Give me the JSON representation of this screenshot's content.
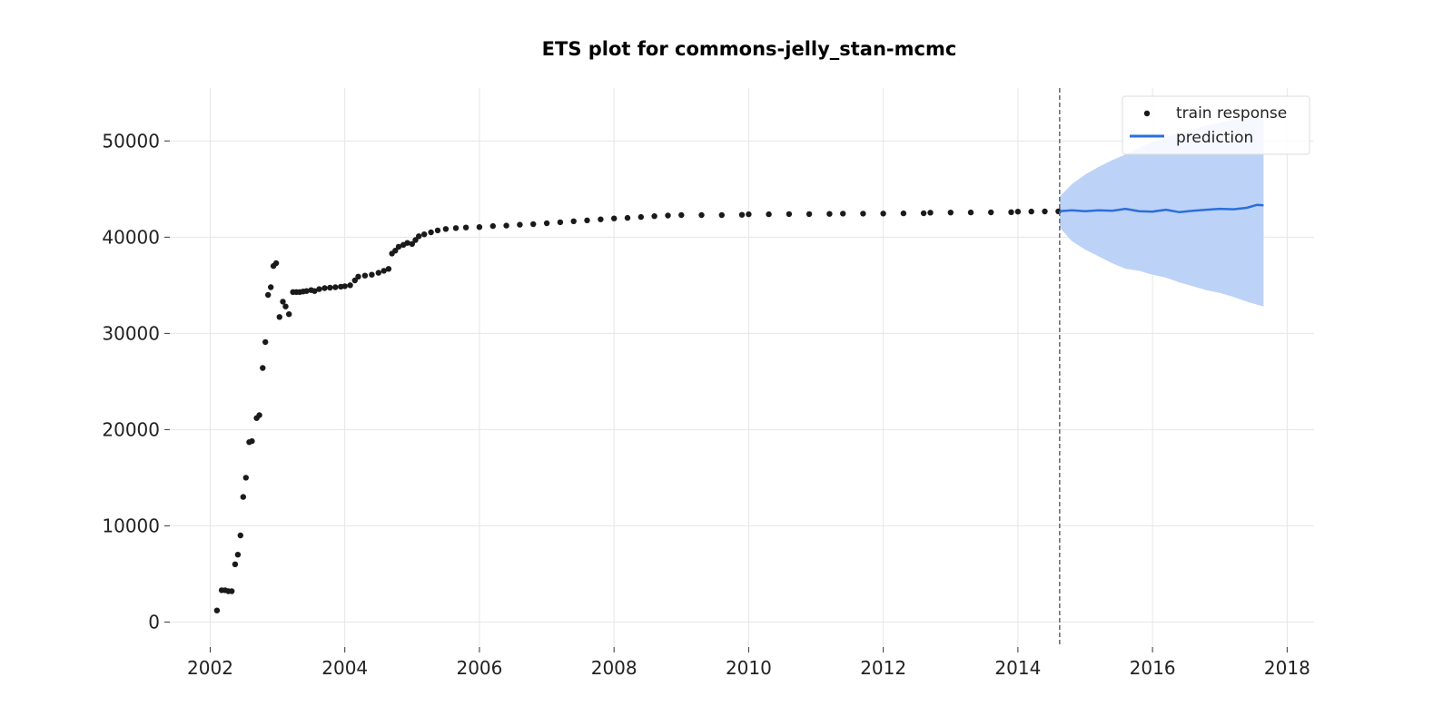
{
  "chart_data": {
    "type": "scatter",
    "title": "ETS plot for commons-jelly_stan-mcmc",
    "xlabel": "",
    "ylabel": "",
    "xlim": [
      2001.4,
      2018.4
    ],
    "ylim": [
      -2600,
      55500
    ],
    "x_ticks": [
      2002,
      2004,
      2006,
      2008,
      2010,
      2012,
      2014,
      2016,
      2018
    ],
    "x_tick_labels": [
      "2002",
      "2004",
      "2006",
      "2008",
      "2010",
      "2012",
      "2014",
      "2016",
      "2018"
    ],
    "y_ticks": [
      0,
      10000,
      20000,
      30000,
      40000,
      50000
    ],
    "y_tick_labels": [
      "0",
      "10000",
      "20000",
      "30000",
      "40000",
      "50000"
    ],
    "grid": true,
    "legend_position": "top-right",
    "forecast_start": 2014.62,
    "colors": {
      "train": "#1a1a1a",
      "prediction": "#2a6fdb",
      "interval": "#bdd2f7",
      "cutoff": "#666666",
      "grid": "#e6e6e6"
    },
    "series": [
      {
        "name": "train response",
        "kind": "scatter",
        "points": [
          [
            2002.1,
            1200
          ],
          [
            2002.17,
            3300
          ],
          [
            2002.22,
            3300
          ],
          [
            2002.27,
            3200
          ],
          [
            2002.32,
            3200
          ],
          [
            2002.37,
            6000
          ],
          [
            2002.41,
            7000
          ],
          [
            2002.45,
            9000
          ],
          [
            2002.49,
            13000
          ],
          [
            2002.53,
            15000
          ],
          [
            2002.58,
            18700
          ],
          [
            2002.62,
            18800
          ],
          [
            2002.69,
            21200
          ],
          [
            2002.73,
            21500
          ],
          [
            2002.78,
            26400
          ],
          [
            2002.82,
            29100
          ],
          [
            2002.86,
            34000
          ],
          [
            2002.9,
            34800
          ],
          [
            2002.94,
            37000
          ],
          [
            2002.98,
            37300
          ],
          [
            2003.03,
            31700
          ],
          [
            2003.08,
            33300
          ],
          [
            2003.12,
            32800
          ],
          [
            2003.17,
            32000
          ],
          [
            2003.23,
            34300
          ],
          [
            2003.28,
            34300
          ],
          [
            2003.33,
            34300
          ],
          [
            2003.38,
            34350
          ],
          [
            2003.43,
            34400
          ],
          [
            2003.5,
            34500
          ],
          [
            2003.55,
            34400
          ],
          [
            2003.62,
            34600
          ],
          [
            2003.7,
            34700
          ],
          [
            2003.78,
            34750
          ],
          [
            2003.86,
            34800
          ],
          [
            2003.94,
            34850
          ],
          [
            2004.0,
            34900
          ],
          [
            2004.08,
            35000
          ],
          [
            2004.15,
            35500
          ],
          [
            2004.2,
            35900
          ],
          [
            2004.3,
            36000
          ],
          [
            2004.4,
            36100
          ],
          [
            2004.5,
            36300
          ],
          [
            2004.58,
            36500
          ],
          [
            2004.65,
            36700
          ],
          [
            2004.7,
            38300
          ],
          [
            2004.75,
            38600
          ],
          [
            2004.8,
            39000
          ],
          [
            2004.87,
            39200
          ],
          [
            2004.93,
            39400
          ],
          [
            2005.0,
            39300
          ],
          [
            2005.05,
            39700
          ],
          [
            2005.1,
            40100
          ],
          [
            2005.18,
            40300
          ],
          [
            2005.28,
            40500
          ],
          [
            2005.38,
            40700
          ],
          [
            2005.5,
            40850
          ],
          [
            2005.65,
            40950
          ],
          [
            2005.8,
            41000
          ],
          [
            2006.0,
            41050
          ],
          [
            2006.2,
            41150
          ],
          [
            2006.4,
            41200
          ],
          [
            2006.6,
            41300
          ],
          [
            2006.8,
            41350
          ],
          [
            2007.0,
            41450
          ],
          [
            2007.2,
            41550
          ],
          [
            2007.4,
            41650
          ],
          [
            2007.6,
            41750
          ],
          [
            2007.8,
            41850
          ],
          [
            2008.0,
            41950
          ],
          [
            2008.2,
            42000
          ],
          [
            2008.4,
            42100
          ],
          [
            2008.6,
            42180
          ],
          [
            2008.8,
            42250
          ],
          [
            2009.0,
            42300
          ],
          [
            2009.3,
            42300
          ],
          [
            2009.6,
            42300
          ],
          [
            2009.9,
            42320
          ],
          [
            2010.0,
            42380
          ],
          [
            2010.3,
            42380
          ],
          [
            2010.6,
            42400
          ],
          [
            2010.9,
            42400
          ],
          [
            2011.2,
            42420
          ],
          [
            2011.4,
            42450
          ],
          [
            2011.7,
            42450
          ],
          [
            2012.0,
            42460
          ],
          [
            2012.3,
            42470
          ],
          [
            2012.6,
            42480
          ],
          [
            2012.7,
            42550
          ],
          [
            2013.0,
            42560
          ],
          [
            2013.3,
            42570
          ],
          [
            2013.6,
            42580
          ],
          [
            2013.9,
            42600
          ],
          [
            2014.0,
            42650
          ],
          [
            2014.2,
            42660
          ],
          [
            2014.4,
            42670
          ],
          [
            2014.6,
            42680
          ]
        ]
      },
      {
        "name": "prediction",
        "kind": "line",
        "points": [
          [
            2014.62,
            42700
          ],
          [
            2014.8,
            42800
          ],
          [
            2015.0,
            42700
          ],
          [
            2015.2,
            42800
          ],
          [
            2015.4,
            42750
          ],
          [
            2015.6,
            42950
          ],
          [
            2015.8,
            42700
          ],
          [
            2016.0,
            42650
          ],
          [
            2016.2,
            42850
          ],
          [
            2016.4,
            42600
          ],
          [
            2016.6,
            42750
          ],
          [
            2016.8,
            42850
          ],
          [
            2017.0,
            42950
          ],
          [
            2017.2,
            42900
          ],
          [
            2017.4,
            43050
          ],
          [
            2017.55,
            43350
          ],
          [
            2017.65,
            43300
          ]
        ]
      }
    ],
    "interval": {
      "x": [
        2014.62,
        2014.8,
        2015.0,
        2015.2,
        2015.4,
        2015.6,
        2015.8,
        2016.0,
        2016.2,
        2016.4,
        2016.6,
        2016.8,
        2017.0,
        2017.2,
        2017.4,
        2017.65
      ],
      "lower": [
        41000,
        39600,
        38700,
        38000,
        37300,
        36700,
        36500,
        36100,
        35800,
        35300,
        34900,
        34500,
        34200,
        33800,
        33300,
        32800
      ],
      "upper": [
        44200,
        45500,
        46500,
        47300,
        48000,
        48600,
        49300,
        49900,
        50400,
        50800,
        51200,
        51600,
        51900,
        52200,
        52400,
        52600
      ]
    }
  }
}
